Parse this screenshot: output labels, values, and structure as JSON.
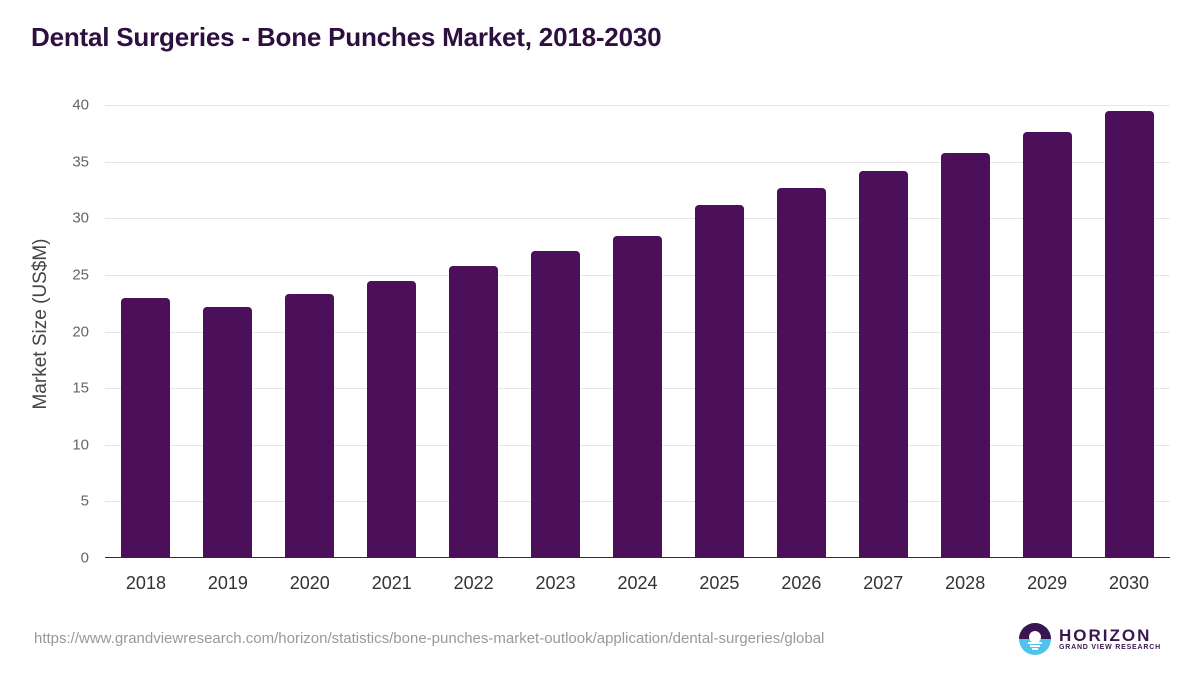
{
  "header": {
    "title": "Dental Surgeries - Bone Punches Market, 2018-2030"
  },
  "footer": {
    "source_url": "https://www.grandviewresearch.com/horizon/statistics/bone-punches-market-outlook/application/dental-surgeries/global",
    "logo_title": "HORIZON",
    "logo_subtitle": "GRAND VIEW RESEARCH"
  },
  "colors": {
    "bar": "#4b1059",
    "title": "#2d1040",
    "logo_dark": "#3a1650",
    "logo_light": "#4ec3ec"
  },
  "axis": {
    "ylabel": "Market Size (US$M)",
    "yticks": [
      "0",
      "5",
      "10",
      "15",
      "20",
      "25",
      "30",
      "35",
      "40"
    ]
  },
  "chart_data": {
    "type": "bar",
    "title": "Dental Surgeries - Bone Punches Market, 2018-2030",
    "xlabel": "",
    "ylabel": "Market Size (US$M)",
    "ylim": [
      0,
      40
    ],
    "yticks": [
      0,
      5,
      10,
      15,
      20,
      25,
      30,
      35,
      40
    ],
    "grid": true,
    "legend": "none",
    "categories": [
      "2018",
      "2019",
      "2020",
      "2021",
      "2022",
      "2023",
      "2024",
      "2025",
      "2026",
      "2027",
      "2028",
      "2029",
      "2030"
    ],
    "values": [
      23.0,
      22.2,
      23.3,
      24.5,
      25.8,
      27.1,
      28.4,
      31.2,
      32.7,
      34.2,
      35.8,
      37.6,
      39.5
    ]
  }
}
